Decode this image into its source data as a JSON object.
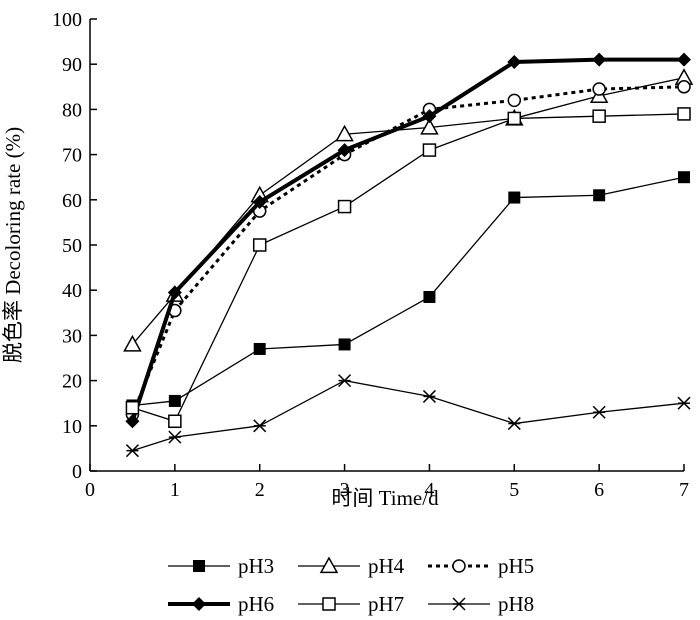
{
  "chart_data": {
    "type": "line",
    "title": "",
    "xlabel": "时间 Time/d",
    "ylabel": "脱色率 Decoloring rate (%)",
    "xlim": [
      0,
      7
    ],
    "ylim": [
      0,
      100
    ],
    "xticks": [
      0,
      1,
      2,
      3,
      4,
      5,
      6,
      7
    ],
    "yticks": [
      0,
      10,
      20,
      30,
      40,
      50,
      60,
      70,
      80,
      90,
      100
    ],
    "grid": false,
    "legend_position": "bottom",
    "x": [
      0.5,
      1,
      2,
      3,
      4,
      5,
      6,
      7
    ],
    "series": [
      {
        "name": "pH3",
        "marker": "filled-square",
        "line": "solid",
        "values": [
          14.5,
          15.5,
          27,
          28,
          38.5,
          60.5,
          61,
          65
        ]
      },
      {
        "name": "pH4",
        "marker": "open-triangle",
        "line": "solid",
        "values": [
          28,
          39,
          61,
          74.5,
          76,
          78,
          83,
          87
        ]
      },
      {
        "name": "pH5",
        "marker": "open-circle",
        "line": "dotted",
        "values": [
          12.5,
          35.5,
          57.5,
          70,
          80,
          82,
          84.5,
          85
        ]
      },
      {
        "name": "pH6",
        "marker": "filled-diamond",
        "line": "thick",
        "values": [
          11,
          39.5,
          59.5,
          71,
          78.5,
          90.5,
          91,
          91
        ]
      },
      {
        "name": "pH7",
        "marker": "open-square",
        "line": "solid",
        "values": [
          14,
          11,
          50,
          58.5,
          71,
          78,
          78.5,
          79
        ]
      },
      {
        "name": "pH8",
        "marker": "asterisk",
        "line": "solid",
        "values": [
          4.5,
          7.5,
          10,
          20,
          16.5,
          10.5,
          13,
          15
        ]
      }
    ]
  }
}
